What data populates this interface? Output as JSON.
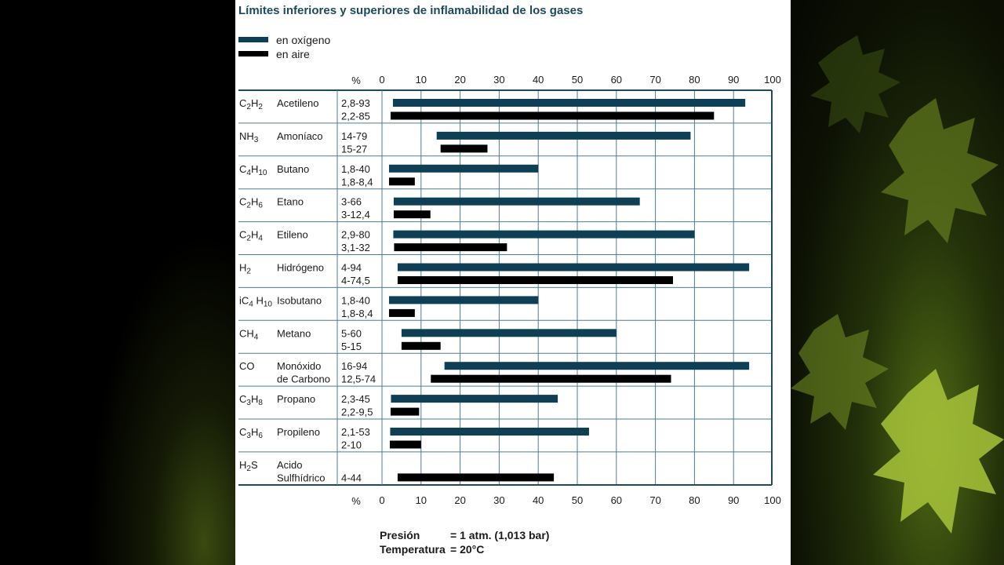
{
  "colors": {
    "oxygen": "#0e3f54",
    "air": "#000000",
    "grid": "#4d7d93",
    "frame": "#1f4a5e"
  },
  "chart_data": {
    "type": "bar",
    "title": "Límites inferiores y superiores de inflamabilidad de los gases",
    "legend": [
      {
        "key": "oxygen",
        "label": "en oxígeno"
      },
      {
        "key": "air",
        "label": "en aire"
      }
    ],
    "axis_unit": "%",
    "xticks": [
      "0",
      "10",
      "20",
      "30",
      "40",
      "50",
      "60",
      "70",
      "80",
      "90",
      "100"
    ],
    "xlim": [
      0,
      100
    ],
    "grid": true,
    "rows": [
      {
        "formula": "C2H2",
        "formula_parts": [
          "C",
          "2",
          "H",
          "2"
        ],
        "name": [
          "Acetileno"
        ],
        "ranges": [
          "2,8-93",
          "2,2-85"
        ],
        "oxygen": [
          2.8,
          93
        ],
        "air": [
          2.2,
          85
        ]
      },
      {
        "formula": "NH3",
        "formula_parts": [
          "NH",
          "3"
        ],
        "name": [
          "Amoníaco"
        ],
        "ranges": [
          "14-79",
          "15-27"
        ],
        "oxygen": [
          14,
          79
        ],
        "air": [
          15,
          27
        ]
      },
      {
        "formula": "C4H10",
        "formula_parts": [
          "C",
          "4",
          "H",
          "10"
        ],
        "name": [
          "Butano"
        ],
        "ranges": [
          "1,8-40",
          "1,8-8,4"
        ],
        "oxygen": [
          1.8,
          40
        ],
        "air": [
          1.8,
          8.4
        ]
      },
      {
        "formula": "C2H6",
        "formula_parts": [
          "C",
          "2",
          "H",
          "6"
        ],
        "name": [
          "Etano"
        ],
        "ranges": [
          "3-66",
          "3-12,4"
        ],
        "oxygen": [
          3,
          66
        ],
        "air": [
          3,
          12.4
        ]
      },
      {
        "formula": "C2H4",
        "formula_parts": [
          "C",
          "2",
          "H",
          "4"
        ],
        "name": [
          "Etileno"
        ],
        "ranges": [
          "2,9-80",
          "3,1-32"
        ],
        "oxygen": [
          2.9,
          80
        ],
        "air": [
          3.1,
          32
        ]
      },
      {
        "formula": "H2",
        "formula_parts": [
          "H",
          "2"
        ],
        "name": [
          "Hidrógeno"
        ],
        "ranges": [
          "4-94",
          "4-74,5"
        ],
        "oxygen": [
          4,
          94
        ],
        "air": [
          4,
          74.5
        ]
      },
      {
        "formula": "iC4 H10",
        "formula_parts": [
          "iC",
          "4",
          " H",
          "10"
        ],
        "name": [
          "Isobutano"
        ],
        "ranges": [
          "1,8-40",
          "1,8-8,4"
        ],
        "oxygen": [
          1.8,
          40
        ],
        "air": [
          1.8,
          8.4
        ]
      },
      {
        "formula": "CH4",
        "formula_parts": [
          "CH",
          "4"
        ],
        "name": [
          "Metano"
        ],
        "ranges": [
          "5-60",
          "5-15"
        ],
        "oxygen": [
          5,
          60
        ],
        "air": [
          5,
          15
        ]
      },
      {
        "formula": "CO",
        "formula_parts": [
          "CO"
        ],
        "name": [
          "Monóxido",
          "de Carbono"
        ],
        "ranges": [
          "16-94",
          "12,5-74"
        ],
        "oxygen": [
          16,
          94
        ],
        "air": [
          12.5,
          74
        ]
      },
      {
        "formula": "C3H8",
        "formula_parts": [
          "C",
          "3",
          "H",
          "8"
        ],
        "name": [
          "Propano"
        ],
        "ranges": [
          "2,3-45",
          "2,2-9,5"
        ],
        "oxygen": [
          2.3,
          45
        ],
        "air": [
          2.2,
          9.5
        ]
      },
      {
        "formula": "C3H6",
        "formula_parts": [
          "C",
          "3",
          "H",
          "6"
        ],
        "name": [
          "Propileno"
        ],
        "ranges": [
          "2,1-53",
          "2-10"
        ],
        "oxygen": [
          2.1,
          53
        ],
        "air": [
          2,
          10
        ]
      },
      {
        "formula": "H2S",
        "formula_parts": [
          "H",
          "2",
          "S"
        ],
        "name": [
          "Acido",
          "Sulfhídrico"
        ],
        "ranges": [
          "",
          "4-44"
        ],
        "oxygen": null,
        "air": [
          4,
          44
        ]
      }
    ]
  },
  "footer": {
    "pressure_label": "Presión",
    "pressure_value": "=  1 atm. (1,013 bar)",
    "temperature_label": "Temperatura",
    "temperature_value": "=  20°C"
  }
}
